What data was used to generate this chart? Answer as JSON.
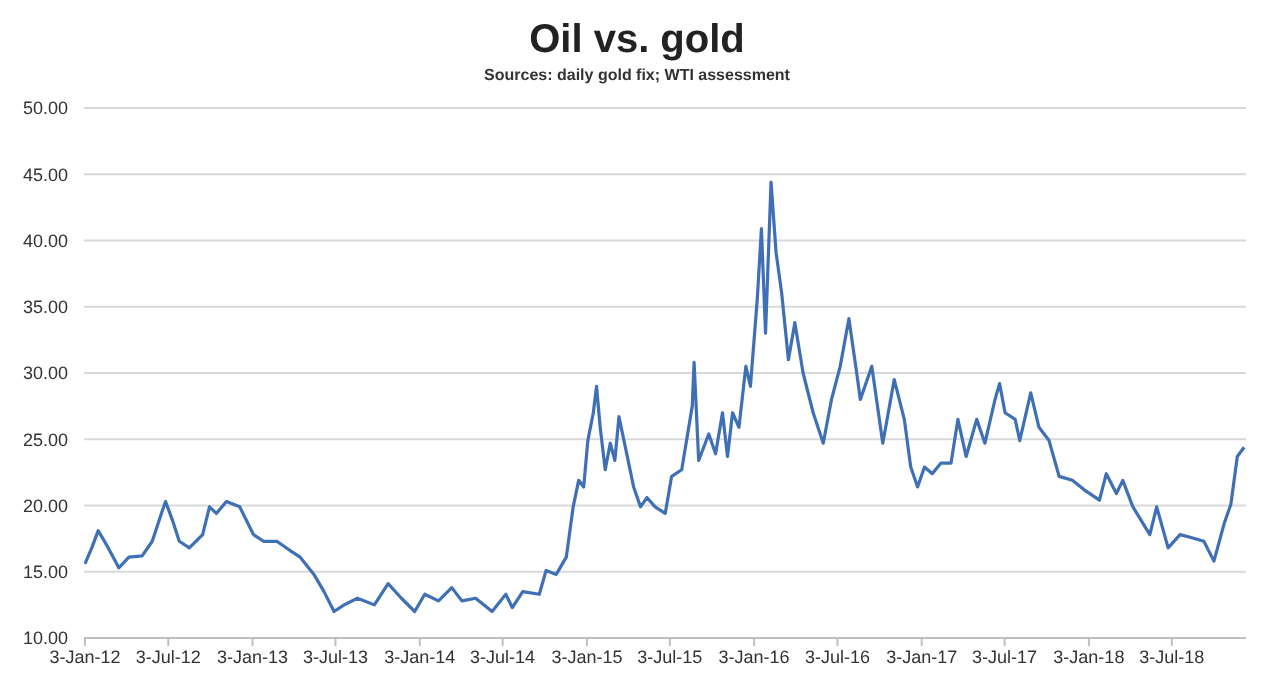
{
  "chart_data": {
    "type": "line",
    "title": "Oil vs. gold",
    "subtitle": "Sources: daily gold fix; WTI assessment",
    "xlim": [
      "2012-01-01",
      "2018-12-12"
    ],
    "xticks": [
      {
        "value": "2012-01-03",
        "label": "3-Jan-12"
      },
      {
        "value": "2012-07-03",
        "label": "3-Jul-12"
      },
      {
        "value": "2013-01-03",
        "label": "3-Jan-13"
      },
      {
        "value": "2013-07-03",
        "label": "3-Jul-13"
      },
      {
        "value": "2014-01-03",
        "label": "3-Jan-14"
      },
      {
        "value": "2014-07-03",
        "label": "3-Jul-14"
      },
      {
        "value": "2015-01-03",
        "label": "3-Jan-15"
      },
      {
        "value": "2015-07-03",
        "label": "3-Jul-15"
      },
      {
        "value": "2016-01-03",
        "label": "3-Jan-16"
      },
      {
        "value": "2016-07-03",
        "label": "3-Jul-16"
      },
      {
        "value": "2017-01-03",
        "label": "3-Jan-17"
      },
      {
        "value": "2017-07-03",
        "label": "3-Jul-17"
      },
      {
        "value": "2018-01-03",
        "label": "3-Jan-18"
      },
      {
        "value": "2018-07-03",
        "label": "3-Jul-18"
      }
    ],
    "ylim": [
      10,
      50
    ],
    "yticks": [
      {
        "value": 10,
        "label": "10.00"
      },
      {
        "value": 15,
        "label": "15.00"
      },
      {
        "value": 20,
        "label": "20.00"
      },
      {
        "value": 25,
        "label": "25.00"
      },
      {
        "value": 30,
        "label": "30.00"
      },
      {
        "value": 35,
        "label": "35.00"
      },
      {
        "value": 40,
        "label": "40.00"
      },
      {
        "value": 45,
        "label": "45.00"
      },
      {
        "value": 50,
        "label": "50.00"
      }
    ],
    "grid": "y",
    "marker": "none",
    "line_style": "solid",
    "x": [
      "2012-01-03",
      "2012-01-18",
      "2012-02-01",
      "2012-02-23",
      "2012-03-17",
      "2012-04-08",
      "2012-05-07",
      "2012-05-29",
      "2012-06-20",
      "2012-06-27",
      "2012-07-12",
      "2012-07-27",
      "2012-08-18",
      "2012-09-16",
      "2012-10-01",
      "2012-10-16",
      "2012-11-07",
      "2012-12-06",
      "2013-01-05",
      "2013-01-27",
      "2013-02-25",
      "2013-03-26",
      "2013-04-17",
      "2013-05-17",
      "2013-06-08",
      "2013-06-30",
      "2013-07-22",
      "2013-08-20",
      "2013-09-26",
      "2013-10-26",
      "2013-11-24",
      "2013-12-23",
      "2014-01-14",
      "2014-02-13",
      "2014-03-14",
      "2014-04-05",
      "2014-05-05",
      "2014-06-10",
      "2014-07-10",
      "2014-07-24",
      "2014-08-16",
      "2014-09-21",
      "2014-10-06",
      "2014-10-28",
      "2014-11-19",
      "2014-12-04",
      "2014-12-16",
      "2014-12-27",
      "2015-01-05",
      "2015-01-17",
      "2015-01-24",
      "2015-02-01",
      "2015-02-12",
      "2015-02-23",
      "2015-03-05",
      "2015-03-14",
      "2015-03-31",
      "2015-04-15",
      "2015-04-30",
      "2015-05-14",
      "2015-06-01",
      "2015-06-23",
      "2015-07-07",
      "2015-07-29",
      "2015-08-21",
      "2015-08-25",
      "2015-09-04",
      "2015-09-26",
      "2015-10-11",
      "2015-10-26",
      "2015-11-06",
      "2015-11-17",
      "2015-12-01",
      "2015-12-16",
      "2015-12-26",
      "2016-01-10",
      "2016-01-19",
      "2016-01-28",
      "2016-02-09",
      "2016-02-20",
      "2016-03-03",
      "2016-03-18",
      "2016-04-01",
      "2016-04-19",
      "2016-05-11",
      "2016-06-02",
      "2016-06-20",
      "2016-07-09",
      "2016-07-28",
      "2016-08-12",
      "2016-08-22",
      "2016-09-16",
      "2016-10-10",
      "2016-11-04",
      "2016-11-26",
      "2016-12-10",
      "2016-12-25",
      "2017-01-09",
      "2017-01-26",
      "2017-02-14",
      "2017-03-08",
      "2017-03-23",
      "2017-04-10",
      "2017-05-03",
      "2017-05-21",
      "2017-06-12",
      "2017-06-22",
      "2017-07-04",
      "2017-07-26",
      "2017-08-05",
      "2017-08-29",
      "2017-09-16",
      "2017-10-08",
      "2017-10-30",
      "2017-11-28",
      "2017-12-27",
      "2018-01-26",
      "2018-02-10",
      "2018-03-04",
      "2018-03-18",
      "2018-04-09",
      "2018-05-16",
      "2018-05-31",
      "2018-06-25",
      "2018-07-21",
      "2018-08-12",
      "2018-09-11",
      "2018-10-03",
      "2018-10-25",
      "2018-11-09",
      "2018-11-23",
      "2018-12-08"
    ],
    "series": [
      {
        "color": "#3f6fb5",
        "values": [
          15.6,
          16.8,
          18.1,
          16.8,
          15.3,
          16.1,
          16.2,
          17.3,
          19.6,
          20.3,
          18.9,
          17.3,
          16.8,
          17.8,
          19.9,
          19.4,
          20.3,
          19.9,
          17.8,
          17.3,
          17.3,
          16.6,
          16.1,
          14.8,
          13.5,
          12.0,
          12.5,
          13.0,
          12.5,
          14.1,
          13.0,
          12.0,
          13.3,
          12.8,
          13.8,
          12.8,
          13.0,
          12.0,
          13.3,
          12.3,
          13.5,
          13.3,
          15.1,
          14.8,
          16.1,
          19.9,
          21.9,
          21.4,
          24.9,
          27.0,
          29.0,
          25.9,
          22.7,
          24.7,
          23.4,
          26.7,
          23.9,
          21.4,
          19.9,
          20.6,
          19.9,
          19.4,
          22.2,
          22.7,
          27.5,
          30.8,
          23.4,
          25.4,
          23.9,
          27.0,
          23.7,
          27.0,
          25.9,
          30.5,
          29.0,
          35.6,
          40.9,
          33.0,
          44.4,
          39.1,
          36.1,
          31.0,
          33.8,
          30.0,
          27.0,
          24.7,
          28.0,
          30.5,
          34.1,
          30.5,
          28.0,
          30.5,
          24.7,
          29.5,
          26.5,
          22.9,
          21.4,
          22.9,
          22.4,
          23.2,
          23.2,
          26.5,
          23.7,
          26.5,
          24.7,
          28.0,
          29.2,
          27.0,
          26.5,
          24.9,
          28.5,
          25.9,
          24.9,
          22.2,
          21.9,
          21.1,
          20.4,
          22.4,
          20.9,
          21.9,
          19.9,
          17.8,
          19.9,
          16.8,
          17.8,
          17.6,
          17.3,
          15.8,
          18.6,
          20.1,
          23.7,
          24.4
        ]
      }
    ]
  }
}
